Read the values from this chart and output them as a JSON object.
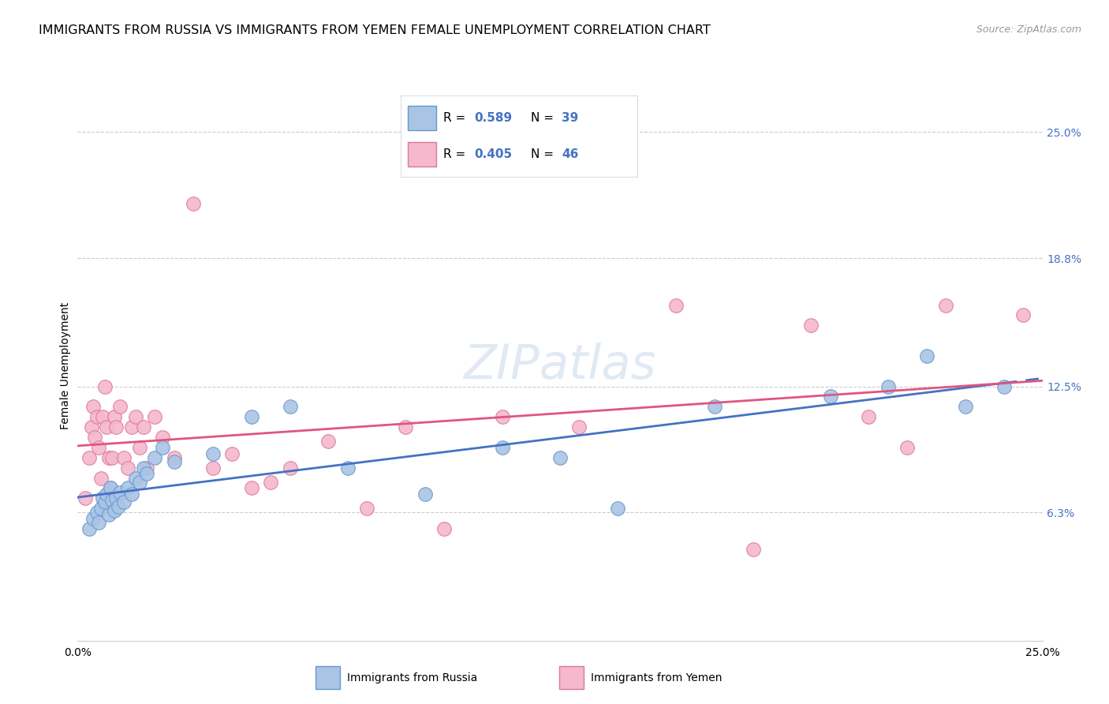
{
  "title": "IMMIGRANTS FROM RUSSIA VS IMMIGRANTS FROM YEMEN FEMALE UNEMPLOYMENT CORRELATION CHART",
  "source": "Source: ZipAtlas.com",
  "ylabel": "Female Unemployment",
  "ytick_vals": [
    6.3,
    12.5,
    18.8,
    25.0
  ],
  "xlim": [
    0.0,
    25.0
  ],
  "ylim": [
    0.0,
    27.0
  ],
  "russia_R": "0.589",
  "russia_N": "39",
  "yemen_R": "0.405",
  "yemen_N": "46",
  "russia_scatter_color": "#aac4e6",
  "russia_edge_color": "#6699cc",
  "russia_line_color": "#4472c4",
  "yemen_scatter_color": "#f5b8cc",
  "yemen_edge_color": "#dd7799",
  "yemen_line_color": "#e05580",
  "legend_text_color": "#4472c4",
  "right_axis_color": "#4472c4",
  "background_color": "#ffffff",
  "grid_color": "#cccccc",
  "watermark": "ZIPatlas",
  "russia_x": [
    0.3,
    0.4,
    0.5,
    0.55,
    0.6,
    0.65,
    0.7,
    0.75,
    0.8,
    0.85,
    0.9,
    0.95,
    1.0,
    1.05,
    1.1,
    1.2,
    1.3,
    1.4,
    1.5,
    1.6,
    1.7,
    1.8,
    2.0,
    2.2,
    2.5,
    3.5,
    4.5,
    5.5,
    7.0,
    9.0,
    11.0,
    12.5,
    14.0,
    16.5,
    19.5,
    21.0,
    22.0,
    23.0,
    24.0
  ],
  "russia_y": [
    5.5,
    6.0,
    6.3,
    5.8,
    6.5,
    7.0,
    6.8,
    7.2,
    6.2,
    7.5,
    6.9,
    6.4,
    7.0,
    6.6,
    7.3,
    6.8,
    7.5,
    7.2,
    8.0,
    7.8,
    8.5,
    8.2,
    9.0,
    9.5,
    8.8,
    9.2,
    11.0,
    11.5,
    8.5,
    7.2,
    9.5,
    9.0,
    6.5,
    11.5,
    12.0,
    12.5,
    14.0,
    11.5,
    12.5
  ],
  "yemen_x": [
    0.2,
    0.3,
    0.35,
    0.4,
    0.45,
    0.5,
    0.55,
    0.6,
    0.65,
    0.7,
    0.75,
    0.8,
    0.85,
    0.9,
    0.95,
    1.0,
    1.1,
    1.2,
    1.3,
    1.4,
    1.5,
    1.6,
    1.7,
    1.8,
    2.0,
    2.2,
    2.5,
    3.0,
    3.5,
    4.0,
    4.5,
    5.0,
    5.5,
    6.5,
    7.5,
    8.5,
    9.5,
    11.0,
    13.0,
    15.5,
    17.5,
    19.0,
    20.5,
    21.5,
    22.5,
    24.5
  ],
  "yemen_y": [
    7.0,
    9.0,
    10.5,
    11.5,
    10.0,
    11.0,
    9.5,
    8.0,
    11.0,
    12.5,
    10.5,
    9.0,
    7.5,
    9.0,
    11.0,
    10.5,
    11.5,
    9.0,
    8.5,
    10.5,
    11.0,
    9.5,
    10.5,
    8.5,
    11.0,
    10.0,
    9.0,
    21.5,
    8.5,
    9.2,
    7.5,
    7.8,
    8.5,
    9.8,
    6.5,
    10.5,
    5.5,
    11.0,
    10.5,
    16.5,
    4.5,
    15.5,
    11.0,
    9.5,
    16.5,
    16.0
  ],
  "title_fontsize": 11.5,
  "source_fontsize": 9,
  "tick_fontsize": 10,
  "ylabel_fontsize": 10,
  "legend_fontsize": 11,
  "watermark_fontsize": 44,
  "scatter_size": 160
}
